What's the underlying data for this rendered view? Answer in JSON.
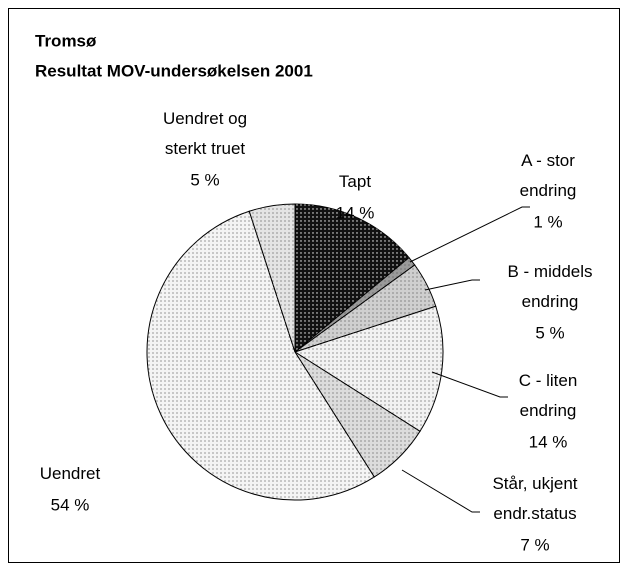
{
  "chart_data": {
    "type": "pie",
    "title": "Tromsø",
    "subtitle": "Resultat MOV-undersøkelsen 2001",
    "categories": [
      "Tapt",
      "A - stor\nendring",
      "B - middels\nendring",
      "C - liten\nendring",
      "Står, ukjent\nendr.status",
      "Uendret",
      "Uendret og\nsterkt truet"
    ],
    "values": [
      14,
      1,
      5,
      14,
      7,
      54,
      5
    ],
    "value_labels": [
      "14 %",
      "1 %",
      "5 %",
      "14 %",
      "7 %",
      "54 %",
      "5 %"
    ],
    "colors": [
      "#111111",
      "#9a9a9a",
      "#cfcfcf",
      "#f2f2f2",
      "#dcdcdc",
      "#f4f4f4",
      "#e4e4e4"
    ]
  }
}
